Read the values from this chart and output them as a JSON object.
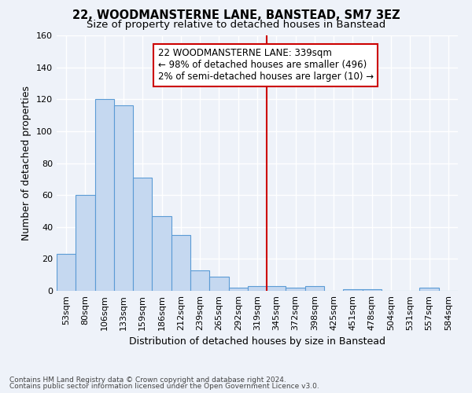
{
  "title": "22, WOODMANSTERNE LANE, BANSTEAD, SM7 3EZ",
  "subtitle": "Size of property relative to detached houses in Banstead",
  "xlabel": "Distribution of detached houses by size in Banstead",
  "ylabel": "Number of detached properties",
  "bin_labels": [
    "53sqm",
    "80sqm",
    "106sqm",
    "133sqm",
    "159sqm",
    "186sqm",
    "212sqm",
    "239sqm",
    "265sqm",
    "292sqm",
    "319sqm",
    "345sqm",
    "372sqm",
    "398sqm",
    "425sqm",
    "451sqm",
    "478sqm",
    "504sqm",
    "531sqm",
    "557sqm",
    "584sqm"
  ],
  "bar_heights": [
    23,
    60,
    120,
    116,
    71,
    47,
    35,
    13,
    9,
    2,
    3,
    3,
    2,
    3,
    0,
    1,
    1,
    0,
    0,
    2,
    0
  ],
  "bar_color": "#c5d8f0",
  "bar_edge_color": "#5b9bd5",
  "vline_index": 11,
  "vline_color": "#cc0000",
  "annotation_line1": "22 WOODMANSTERNE LANE: 339sqm",
  "annotation_line2": "← 98% of detached houses are smaller (496)",
  "annotation_line3": "2% of semi-detached houses are larger (10) →",
  "annotation_box_color": "#cc0000",
  "annotation_box_fill": "#ffffff",
  "ylim": [
    0,
    160
  ],
  "yticks": [
    0,
    20,
    40,
    60,
    80,
    100,
    120,
    140,
    160
  ],
  "footnote1": "Contains HM Land Registry data © Crown copyright and database right 2024.",
  "footnote2": "Contains public sector information licensed under the Open Government Licence v3.0.",
  "background_color": "#eef2f9",
  "grid_color": "#ffffff",
  "title_fontsize": 10.5,
  "subtitle_fontsize": 9.5,
  "xlabel_fontsize": 9,
  "ylabel_fontsize": 9,
  "tick_fontsize": 8,
  "footnote_fontsize": 6.5,
  "annot_fontsize": 8.5
}
